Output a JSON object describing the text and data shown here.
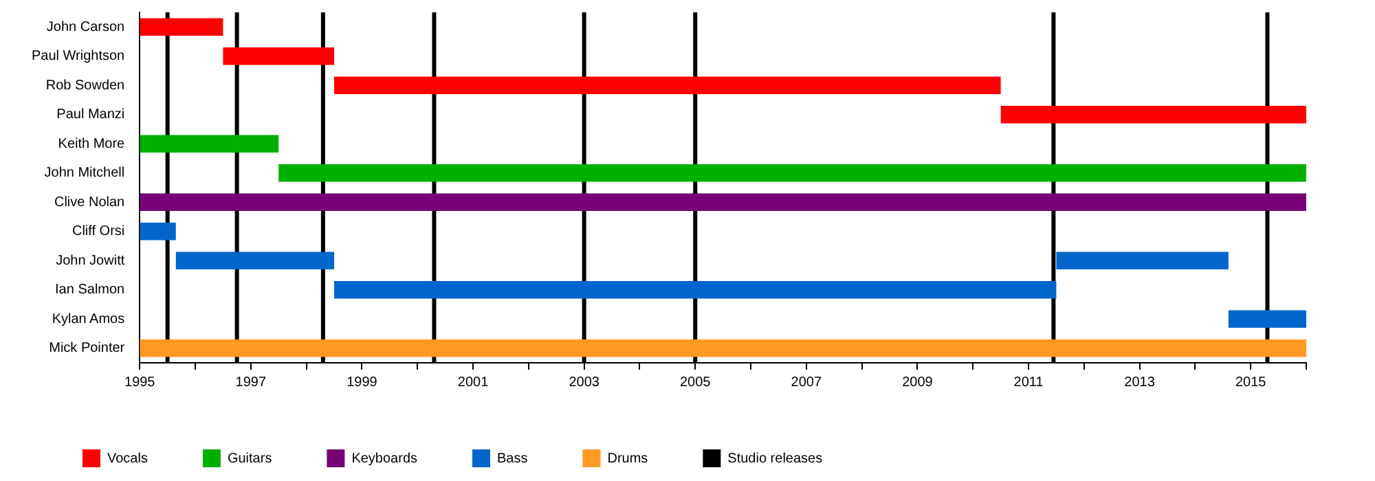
{
  "chart_data": {
    "type": "bar",
    "orientation": "horizontal",
    "categories": [
      "John Carson",
      "Paul Wrightson",
      "Rob Sowden",
      "Paul Manzi",
      "Keith More",
      "John Mitchell",
      "Clive Nolan",
      "Cliff Orsi",
      "John Jowitt",
      "Ian Salmon",
      "Kylan Amos",
      "Mick Pointer"
    ],
    "series": [
      {
        "name": "Vocals",
        "color": "#ff0000",
        "values": [
          1.5,
          2,
          12,
          5.5,
          null,
          null,
          null,
          null,
          null,
          null,
          null,
          null
        ],
        "base": [
          1995,
          1996.5,
          1998.5,
          2010.5,
          null,
          null,
          null,
          null,
          null,
          null,
          null,
          null
        ]
      },
      {
        "name": "Guitars",
        "color": "#00b000",
        "values": [
          null,
          null,
          null,
          null,
          2.5,
          18.5,
          null,
          null,
          null,
          null,
          null,
          null
        ],
        "base": [
          null,
          null,
          null,
          null,
          1995,
          1997.5,
          null,
          null,
          null,
          null,
          null,
          null
        ]
      },
      {
        "name": "Keyboards",
        "color": "#770077",
        "values": [
          null,
          null,
          null,
          null,
          null,
          null,
          21,
          null,
          null,
          null,
          null,
          null
        ],
        "base": [
          null,
          null,
          null,
          null,
          null,
          null,
          1995,
          null,
          null,
          null,
          null,
          null
        ]
      },
      {
        "name": "Bass",
        "color": "#0066cc",
        "values": [
          null,
          null,
          null,
          null,
          null,
          null,
          null,
          0.65,
          2.85,
          13,
          1.4,
          null
        ],
        "base": [
          null,
          null,
          null,
          null,
          null,
          null,
          null,
          1995,
          1995.65,
          1998.5,
          2014.6,
          null
        ]
      },
      {
        "color": "#0066cc",
        "values": [
          null,
          null,
          null,
          null,
          null,
          null,
          null,
          null,
          3.1,
          null,
          null,
          null
        ],
        "base": [
          null,
          null,
          null,
          null,
          null,
          null,
          null,
          null,
          2011.5,
          null,
          null,
          null
        ]
      },
      {
        "name": "Drums",
        "color": "#ff9922",
        "values": [
          null,
          null,
          null,
          null,
          null,
          null,
          null,
          null,
          null,
          null,
          null,
          21
        ],
        "base": [
          null,
          null,
          null,
          null,
          null,
          null,
          null,
          null,
          null,
          null,
          null,
          1995
        ]
      }
    ],
    "ref_lines": [
      {
        "axis": "x",
        "value": 1995.5,
        "label": "Studio releases",
        "color": "#000000"
      },
      {
        "axis": "x",
        "value": 1996.75,
        "color": "#000000"
      },
      {
        "axis": "x",
        "value": 1998.3,
        "color": "#000000"
      },
      {
        "axis": "x",
        "value": 2000.3,
        "color": "#000000"
      },
      {
        "axis": "x",
        "value": 2003,
        "color": "#000000"
      },
      {
        "axis": "x",
        "value": 2005,
        "color": "#000000"
      },
      {
        "axis": "x",
        "value": 2011.45,
        "color": "#000000"
      },
      {
        "axis": "x",
        "value": 2015.3,
        "color": "#000000"
      }
    ],
    "xlim": [
      1995,
      2016
    ],
    "xticks": [
      1995,
      {
        "value": 1996,
        "label": null
      },
      1997,
      {
        "value": 1998,
        "label": null
      },
      1999,
      {
        "value": 2000,
        "label": null
      },
      2001,
      {
        "value": 2002,
        "label": null
      },
      2003,
      {
        "value": 2004,
        "label": null
      },
      2005,
      {
        "value": 2006,
        "label": null
      },
      2007,
      {
        "value": 2008,
        "label": null
      },
      2009,
      {
        "value": 2010,
        "label": null
      },
      2011,
      {
        "value": 2012,
        "label": null
      },
      2013,
      {
        "value": 2014,
        "label": null
      },
      2015,
      {
        "value": 2016,
        "label": null
      }
    ],
    "grid": false,
    "legend": "bottom"
  }
}
